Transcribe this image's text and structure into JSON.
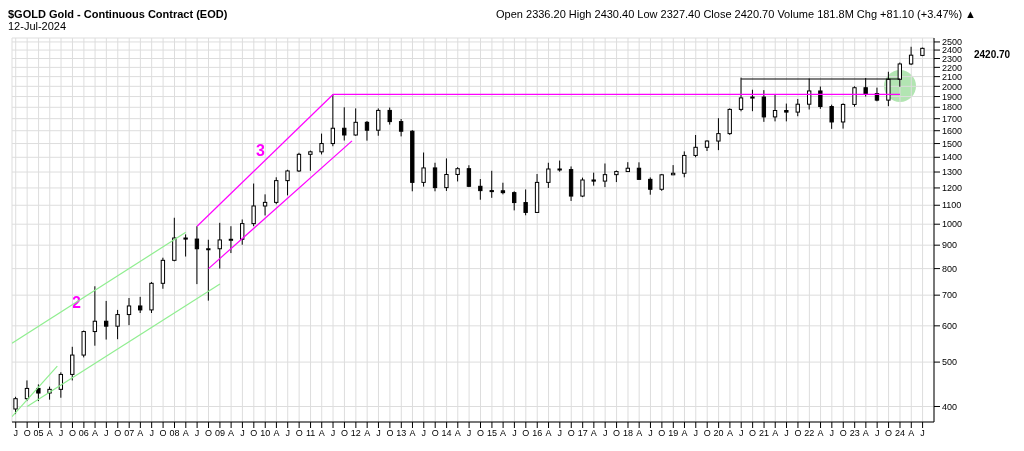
{
  "chart_data": {
    "type": "candlestick",
    "title": "$GOLD Gold - Continuous Contract (EOD)",
    "subtitle": "12-Jul-2024",
    "color": "#000000",
    "log": "y",
    "grid": true,
    "annotations": [
      "Open 2336.20 High 2430.40 Low 2327.40 Close 2420.70 Volume 181.8M Chg +81.10 (+3.47%) ▲",
      "2",
      "3",
      "2420.70"
    ],
    "x": [
      "2004-07",
      "2004-10",
      "2005-01",
      "2005-04",
      "2005-07",
      "2005-10",
      "2006-01",
      "2006-04",
      "2006-07",
      "2006-10",
      "2007-01",
      "2007-04",
      "2007-07",
      "2007-10",
      "2008-01",
      "2008-04",
      "2008-07",
      "2008-10",
      "2009-01",
      "2009-04",
      "2009-07",
      "2009-10",
      "2010-01",
      "2010-04",
      "2010-07",
      "2010-10",
      "2011-01",
      "2011-04",
      "2011-07",
      "2011-10",
      "2012-01",
      "2012-04",
      "2012-07",
      "2012-10",
      "2013-01",
      "2013-04",
      "2013-07",
      "2013-10",
      "2014-01",
      "2014-04",
      "2014-07",
      "2014-10",
      "2015-01",
      "2015-04",
      "2015-07",
      "2015-10",
      "2016-01",
      "2016-04",
      "2016-07",
      "2016-10",
      "2017-01",
      "2017-04",
      "2017-07",
      "2017-10",
      "2018-01",
      "2018-04",
      "2018-07",
      "2018-10",
      "2019-01",
      "2019-04",
      "2019-07",
      "2019-10",
      "2020-01",
      "2020-04",
      "2020-07",
      "2020-10",
      "2021-01",
      "2021-04",
      "2021-07",
      "2021-10",
      "2022-01",
      "2022-04",
      "2022-07",
      "2022-10",
      "2023-01",
      "2023-04",
      "2023-07",
      "2023-10",
      "2024-01",
      "2024-04",
      "2024-07"
    ],
    "ohlc": [
      [
        395,
        420,
        385,
        416
      ],
      [
        416,
        456,
        411,
        438
      ],
      [
        438,
        447,
        411,
        428
      ],
      [
        428,
        442,
        414,
        436
      ],
      [
        436,
        475,
        418,
        470
      ],
      [
        470,
        540,
        456,
        518
      ],
      [
        518,
        586,
        512,
        583
      ],
      [
        583,
        732,
        543,
        614
      ],
      [
        614,
        680,
        560,
        599
      ],
      [
        599,
        650,
        561,
        635
      ],
      [
        635,
        690,
        602,
        663
      ],
      [
        663,
        694,
        640,
        650
      ],
      [
        650,
        748,
        640,
        743
      ],
      [
        743,
        845,
        723,
        834
      ],
      [
        834,
        1033,
        830,
        933
      ],
      [
        933,
        950,
        850,
        928
      ],
      [
        928,
        990,
        740,
        884
      ],
      [
        884,
        925,
        681,
        884
      ],
      [
        884,
        1007,
        800,
        924
      ],
      [
        924,
        990,
        865,
        927
      ],
      [
        927,
        1024,
        902,
        1003
      ],
      [
        1003,
        1227,
        990,
        1096
      ],
      [
        1096,
        1162,
        1045,
        1116
      ],
      [
        1116,
        1266,
        1106,
        1245
      ],
      [
        1245,
        1315,
        1156,
        1307
      ],
      [
        1307,
        1432,
        1300,
        1421
      ],
      [
        1421,
        1448,
        1308,
        1439
      ],
      [
        1439,
        1577,
        1420,
        1500
      ],
      [
        1500,
        1921,
        1480,
        1620
      ],
      [
        1620,
        1800,
        1523,
        1566
      ],
      [
        1566,
        1790,
        1560,
        1669
      ],
      [
        1669,
        1680,
        1522,
        1604
      ],
      [
        1604,
        1790,
        1560,
        1772
      ],
      [
        1772,
        1798,
        1650,
        1675
      ],
      [
        1675,
        1697,
        1555,
        1596
      ],
      [
        1596,
        1605,
        1180,
        1234
      ],
      [
        1234,
        1434,
        1208,
        1327
      ],
      [
        1327,
        1362,
        1180,
        1202
      ],
      [
        1202,
        1392,
        1182,
        1284
      ],
      [
        1284,
        1332,
        1240,
        1322
      ],
      [
        1322,
        1345,
        1205,
        1210
      ],
      [
        1210,
        1255,
        1131,
        1184
      ],
      [
        1184,
        1308,
        1142,
        1183
      ],
      [
        1183,
        1232,
        1162,
        1172
      ],
      [
        1172,
        1180,
        1072,
        1115
      ],
      [
        1115,
        1191,
        1046,
        1061
      ],
      [
        1061,
        1287,
        1061,
        1234
      ],
      [
        1234,
        1362,
        1200,
        1320
      ],
      [
        1320,
        1377,
        1302,
        1316
      ],
      [
        1316,
        1337,
        1124,
        1152
      ],
      [
        1152,
        1264,
        1146,
        1249
      ],
      [
        1249,
        1296,
        1214,
        1242
      ],
      [
        1242,
        1357,
        1205,
        1283
      ],
      [
        1283,
        1310,
        1236,
        1303
      ],
      [
        1303,
        1366,
        1300,
        1325
      ],
      [
        1325,
        1365,
        1250,
        1253
      ],
      [
        1253,
        1265,
        1160,
        1192
      ],
      [
        1192,
        1287,
        1183,
        1282
      ],
      [
        1282,
        1346,
        1280,
        1292
      ],
      [
        1292,
        1442,
        1266,
        1413
      ],
      [
        1413,
        1566,
        1400,
        1472
      ],
      [
        1472,
        1525,
        1445,
        1519
      ],
      [
        1519,
        1704,
        1451,
        1577
      ],
      [
        1577,
        1790,
        1567,
        1781
      ],
      [
        1781,
        2089,
        1764,
        1887
      ],
      [
        1887,
        1966,
        1765,
        1895
      ],
      [
        1895,
        1962,
        1673,
        1715
      ],
      [
        1715,
        1919,
        1677,
        1771
      ],
      [
        1771,
        1834,
        1677,
        1757
      ],
      [
        1757,
        1877,
        1721,
        1828
      ],
      [
        1828,
        2079,
        1780,
        1954
      ],
      [
        1954,
        1998,
        1786,
        1807
      ],
      [
        1807,
        1824,
        1615,
        1672
      ],
      [
        1672,
        1836,
        1617,
        1826
      ],
      [
        1826,
        2000,
        1805,
        1986
      ],
      [
        1986,
        2085,
        1900,
        1929
      ],
      [
        1929,
        1987,
        1855,
        1866
      ],
      [
        1866,
        2152,
        1810,
        2072
      ],
      [
        2072,
        2254,
        1996,
        2238
      ],
      [
        2238,
        2440,
        2226,
        2339
      ],
      [
        2336.2,
        2430.4,
        2327.4,
        2420.7
      ]
    ],
    "series": [
      {
        "type": "line",
        "color": "#90ee90",
        "x": [
          "2004-06",
          "2005-06"
        ],
        "values": [
          380,
          490
        ]
      },
      {
        "type": "line",
        "color": "#90ee90",
        "x": [
          "2004-06",
          "2008-04"
        ],
        "values": [
          550,
          960
        ]
      },
      {
        "type": "line",
        "color": "#90ee90",
        "x": [
          "2004-10",
          "2009-01"
        ],
        "values": [
          400,
          740
        ]
      },
      {
        "type": "line",
        "color": "#ff00ff",
        "x": [
          "2008-07",
          "2011-07"
        ],
        "values": [
          990,
          1920
        ]
      },
      {
        "type": "line",
        "color": "#ff00ff",
        "x": [
          "2008-10",
          "2011-12"
        ],
        "values": [
          800,
          1520
        ]
      },
      {
        "type": "line",
        "color": "#ff00ff",
        "x": [
          "2011-07",
          "2024-01"
        ],
        "values": [
          1920,
          1920
        ]
      },
      {
        "type": "line",
        "color": "#000000",
        "x": [
          "2020-07",
          "2024-01"
        ],
        "values": [
          2075,
          2075
        ]
      }
    ],
    "xlim": [
      "2004-06",
      "2024-10"
    ],
    "xticks": [
      {
        "value": "2004-07",
        "label": "J"
      },
      {
        "value": "2004-10",
        "label": "O"
      },
      {
        "value": "2005-01",
        "label": "05"
      },
      {
        "value": "2005-04",
        "label": "A"
      },
      {
        "value": "2005-07",
        "label": "J"
      },
      {
        "value": "2005-10",
        "label": "O"
      },
      {
        "value": "2006-01",
        "label": "06"
      },
      {
        "value": "2006-04",
        "label": "A"
      },
      {
        "value": "2006-07",
        "label": "J"
      },
      {
        "value": "2006-10",
        "label": "O"
      },
      {
        "value": "2007-01",
        "label": "07"
      },
      {
        "value": "2007-04",
        "label": "A"
      },
      {
        "value": "2007-07",
        "label": "J"
      },
      {
        "value": "2007-10",
        "label": "O"
      },
      {
        "value": "2008-01",
        "label": "08"
      },
      {
        "value": "2008-04",
        "label": "A"
      },
      {
        "value": "2008-07",
        "label": "J"
      },
      {
        "value": "2008-10",
        "label": "O"
      },
      {
        "value": "2009-01",
        "label": "09"
      },
      {
        "value": "2009-04",
        "label": "A"
      },
      {
        "value": "2009-07",
        "label": "J"
      },
      {
        "value": "2009-10",
        "label": "O"
      },
      {
        "value": "2010-01",
        "label": "10"
      },
      {
        "value": "2010-04",
        "label": "A"
      },
      {
        "value": "2010-07",
        "label": "J"
      },
      {
        "value": "2010-10",
        "label": "O"
      },
      {
        "value": "2011-01",
        "label": "11"
      },
      {
        "value": "2011-04",
        "label": "A"
      },
      {
        "value": "2011-07",
        "label": "J"
      },
      {
        "value": "2011-10",
        "label": "O"
      },
      {
        "value": "2012-01",
        "label": "12"
      },
      {
        "value": "2012-04",
        "label": "A"
      },
      {
        "value": "2012-07",
        "label": "J"
      },
      {
        "value": "2012-10",
        "label": "O"
      },
      {
        "value": "2013-01",
        "label": "13"
      },
      {
        "value": "2013-04",
        "label": "A"
      },
      {
        "value": "2013-07",
        "label": "J"
      },
      {
        "value": "2013-10",
        "label": "O"
      },
      {
        "value": "2014-01",
        "label": "14"
      },
      {
        "value": "2014-04",
        "label": "A"
      },
      {
        "value": "2014-07",
        "label": "J"
      },
      {
        "value": "2014-10",
        "label": "O"
      },
      {
        "value": "2015-01",
        "label": "15"
      },
      {
        "value": "2015-04",
        "label": "A"
      },
      {
        "value": "2015-07",
        "label": "J"
      },
      {
        "value": "2015-10",
        "label": "O"
      },
      {
        "value": "2016-01",
        "label": "16"
      },
      {
        "value": "2016-04",
        "label": "A"
      },
      {
        "value": "2016-07",
        "label": "J"
      },
      {
        "value": "2016-10",
        "label": "O"
      },
      {
        "value": "2017-01",
        "label": "17"
      },
      {
        "value": "2017-04",
        "label": "A"
      },
      {
        "value": "2017-07",
        "label": "J"
      },
      {
        "value": "2017-10",
        "label": "O"
      },
      {
        "value": "2018-01",
        "label": "18"
      },
      {
        "value": "2018-04",
        "label": "A"
      },
      {
        "value": "2018-07",
        "label": "J"
      },
      {
        "value": "2018-10",
        "label": "O"
      },
      {
        "value": "2019-01",
        "label": "19"
      },
      {
        "value": "2019-04",
        "label": "A"
      },
      {
        "value": "2019-07",
        "label": "J"
      },
      {
        "value": "2019-10",
        "label": "O"
      },
      {
        "value": "2020-01",
        "label": "20"
      },
      {
        "value": "2020-04",
        "label": "A"
      },
      {
        "value": "2020-07",
        "label": "J"
      },
      {
        "value": "2020-10",
        "label": "O"
      },
      {
        "value": "2021-01",
        "label": "21"
      },
      {
        "value": "2021-04",
        "label": "A"
      },
      {
        "value": "2021-07",
        "label": "J"
      },
      {
        "value": "2021-10",
        "label": "O"
      },
      {
        "value": "2022-01",
        "label": "22"
      },
      {
        "value": "2022-04",
        "label": "A"
      },
      {
        "value": "2022-07",
        "label": "J"
      },
      {
        "value": "2022-10",
        "label": "O"
      },
      {
        "value": "2023-01",
        "label": "23"
      },
      {
        "value": "2023-04",
        "label": "A"
      },
      {
        "value": "2023-07",
        "label": "J"
      },
      {
        "value": "2023-10",
        "label": "O"
      },
      {
        "value": "2024-01",
        "label": "24"
      },
      {
        "value": "2024-04",
        "label": "A"
      },
      {
        "value": "2024-07",
        "label": "J"
      }
    ],
    "ylim": [
      370,
      2550
    ],
    "yticks": [
      400,
      500,
      600,
      700,
      800,
      900,
      1000,
      1100,
      1200,
      1300,
      1400,
      1500,
      1600,
      1700,
      1800,
      1900,
      2000,
      2100,
      2200,
      2300,
      2400,
      2500
    ]
  }
}
